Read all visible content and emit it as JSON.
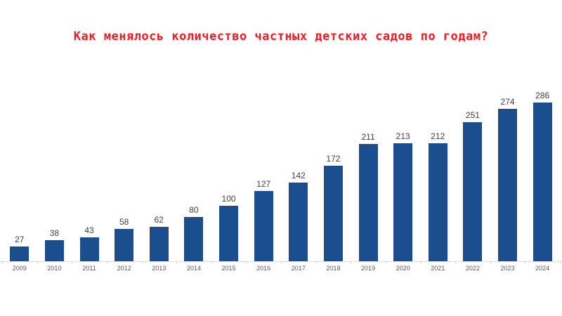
{
  "header": {
    "title": "Как менялось количество частных детских садов по годам?",
    "title_color": "#ee1c25"
  },
  "chart_data": {
    "type": "bar",
    "title": "Как менялось количество частных детских садов по годам?",
    "categories": [
      "2009",
      "2010",
      "2011",
      "2012",
      "2013",
      "2014",
      "2015",
      "2016",
      "2017",
      "2018",
      "2019",
      "2020",
      "2021",
      "2022",
      "2023",
      "2024"
    ],
    "values": [
      27,
      38,
      43,
      58,
      62,
      80,
      100,
      127,
      142,
      172,
      211,
      213,
      212,
      251,
      274,
      286
    ],
    "xlabel": "",
    "ylabel": "",
    "ylim": [
      0,
      300
    ],
    "grid": false,
    "legend": false,
    "value_labels_shown": true,
    "bar_color": "#1b4e8f",
    "value_label_color": "#404040",
    "axis_label_color": "#595959",
    "axis_line_color": "#d9d9d9",
    "background_color": "#ffffff"
  }
}
